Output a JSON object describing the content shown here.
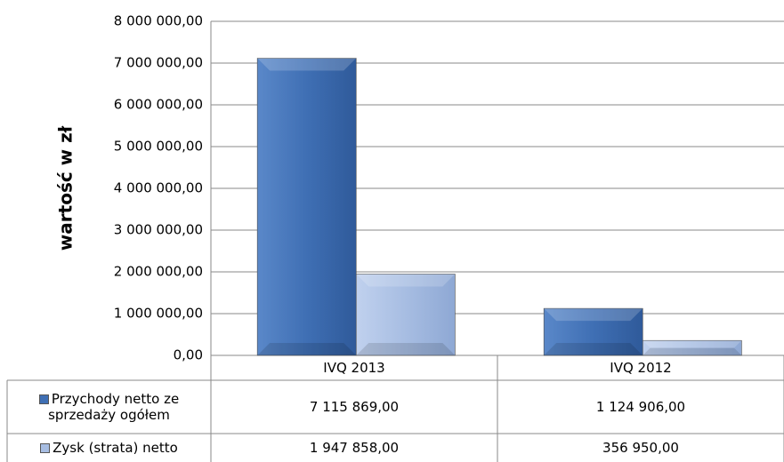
{
  "chart_data": {
    "type": "bar",
    "y_label": "wartość w zł",
    "categories": [
      "IVQ 2013",
      "IVQ 2012"
    ],
    "series": [
      {
        "name": "Przychody netto ze sprzedaży ogółem",
        "color": "#3f6fb4",
        "values": [
          7115869,
          1124906
        ],
        "value_labels": [
          "7 115 869,00",
          "1 124 906,00"
        ]
      },
      {
        "name": "Zysk (strata) netto",
        "color": "#a7bde2",
        "values": [
          1947858,
          356950
        ],
        "value_labels": [
          "1 947 858,00",
          "356 950,00"
        ]
      }
    ],
    "ylim": [
      0,
      8000000
    ],
    "yticks": [
      {
        "value": 0,
        "label": "0,00"
      },
      {
        "value": 1000000,
        "label": "1 000 000,00"
      },
      {
        "value": 2000000,
        "label": "2 000 000,00"
      },
      {
        "value": 3000000,
        "label": "3 000 000,00"
      },
      {
        "value": 4000000,
        "label": "4 000 000,00"
      },
      {
        "value": 5000000,
        "label": "5 000 000,00"
      },
      {
        "value": 6000000,
        "label": "6 000 000,00"
      },
      {
        "value": 7000000,
        "label": "7 000 000,00"
      },
      {
        "value": 8000000,
        "label": "8 000 000,00"
      }
    ],
    "grid": true
  }
}
